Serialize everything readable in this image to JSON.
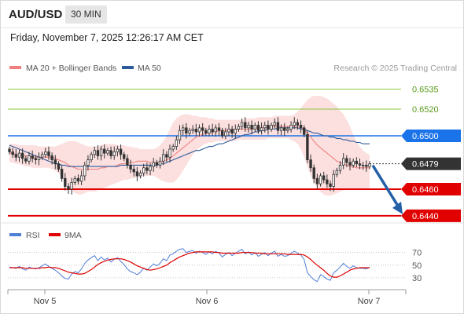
{
  "header": {
    "symbol": "AUD/USD",
    "timeframe": "30 MIN",
    "datetime": "Friday, November 7, 2025 12:26:17 AM CET"
  },
  "legend": {
    "ma20_label": "MA 20 + Bollinger Bands",
    "ma50_label": "MA 50",
    "credit": "Research © 2025 Trading Central",
    "rsi_label": "RSI",
    "rsi_ma_label": "9MA"
  },
  "colors": {
    "ma20": "#f08080",
    "bollinger_fill": "#fcd9d9",
    "ma50": "#2d5b9a",
    "candle": "#333333",
    "resistance_green": "#8cc63f",
    "pivot_blue": "#1a73e8",
    "support_red": "#e00000",
    "current_price": "#333333",
    "forecast_arrow": "#2460a7",
    "rsi": "#4f7fd6",
    "rsi_ma": "#e00000"
  },
  "chart_data": [
    {
      "type": "candlestick",
      "title": "AUD/USD",
      "x_ticks": [
        "Nov 5",
        "Nov 6",
        "Nov 7"
      ],
      "y_range": [
        0.6437,
        0.6543
      ],
      "levels": [
        {
          "label": "0.6535",
          "value": 0.6535,
          "kind": "resistance"
        },
        {
          "label": "0.6520",
          "value": 0.652,
          "kind": "resistance"
        },
        {
          "label": "0.6500",
          "value": 0.65,
          "kind": "pivot"
        },
        {
          "label": "0.6479",
          "value": 0.6479,
          "kind": "current"
        },
        {
          "label": "0.6460",
          "value": 0.646,
          "kind": "support"
        },
        {
          "label": "0.6440",
          "value": 0.644,
          "kind": "support"
        }
      ],
      "forecast": {
        "from": 0.6479,
        "to": 0.644,
        "direction": "down"
      },
      "closes": [
        0.6488,
        0.6486,
        0.6484,
        0.6487,
        0.6483,
        0.6481,
        0.6485,
        0.6483,
        0.6482,
        0.6484,
        0.6486,
        0.6488,
        0.6485,
        0.6482,
        0.6479,
        0.6475,
        0.6468,
        0.6462,
        0.646,
        0.6465,
        0.6468,
        0.6466,
        0.647,
        0.6478,
        0.6482,
        0.6486,
        0.6489,
        0.6485,
        0.649,
        0.6487,
        0.6489,
        0.6485,
        0.6488,
        0.649,
        0.6486,
        0.6483,
        0.6478,
        0.6475,
        0.6473,
        0.647,
        0.6472,
        0.6476,
        0.6474,
        0.6477,
        0.648,
        0.6478,
        0.6481,
        0.6486,
        0.6484,
        0.649,
        0.6492,
        0.6497,
        0.6504,
        0.6506,
        0.6502,
        0.6504,
        0.6505,
        0.6503,
        0.6506,
        0.6504,
        0.6502,
        0.6505,
        0.6503,
        0.6506,
        0.6504,
        0.65,
        0.6503,
        0.6505,
        0.6502,
        0.6505,
        0.6507,
        0.651,
        0.6506,
        0.6508,
        0.6505,
        0.6508,
        0.6504,
        0.6506,
        0.6508,
        0.6505,
        0.6508,
        0.651,
        0.6504,
        0.6506,
        0.6504,
        0.6505,
        0.6508,
        0.651,
        0.6508,
        0.6506,
        0.6501,
        0.6482,
        0.6476,
        0.6468,
        0.6464,
        0.647,
        0.6467,
        0.6464,
        0.6462,
        0.6471,
        0.6474,
        0.6478,
        0.6483,
        0.648,
        0.6478,
        0.6481,
        0.6479,
        0.6478,
        0.6478,
        0.6477,
        0.6479
      ],
      "ma20": [
        0.6487,
        0.6487,
        0.6486,
        0.6486,
        0.6485,
        0.6485,
        0.6485,
        0.6484,
        0.6484,
        0.6484,
        0.6484,
        0.6484,
        0.6484,
        0.6484,
        0.6483,
        0.6482,
        0.6481,
        0.648,
        0.6478,
        0.6477,
        0.6476,
        0.6475,
        0.6475,
        0.6475,
        0.6475,
        0.6475,
        0.6475,
        0.6475,
        0.6476,
        0.6476,
        0.6477,
        0.6477,
        0.6477,
        0.6478,
        0.6479,
        0.6479,
        0.648,
        0.648,
        0.648,
        0.6481,
        0.6481,
        0.6481,
        0.6481,
        0.648,
        0.648,
        0.648,
        0.648,
        0.6481,
        0.6482,
        0.6483,
        0.6485,
        0.6487,
        0.6489,
        0.6491,
        0.6493,
        0.6495,
        0.6497,
        0.6499,
        0.65,
        0.6501,
        0.6502,
        0.6502,
        0.6503,
        0.6503,
        0.6504,
        0.6504,
        0.6504,
        0.6504,
        0.6504,
        0.6505,
        0.6505,
        0.6505,
        0.6505,
        0.6505,
        0.6505,
        0.6506,
        0.6506,
        0.6506,
        0.6506,
        0.6506,
        0.6507,
        0.6507,
        0.6507,
        0.6507,
        0.6507,
        0.6507,
        0.6507,
        0.6507,
        0.6507,
        0.6506,
        0.6505,
        0.6502,
        0.6499,
        0.6496,
        0.6493,
        0.6491,
        0.6489,
        0.6487,
        0.6485,
        0.6483,
        0.6481,
        0.648,
        0.6479,
        0.6478,
        0.6477,
        0.6477,
        0.6476,
        0.6476,
        0.6476,
        0.6476,
        0.6476
      ],
      "bb_upper": [
        0.6494,
        0.6494,
        0.6494,
        0.6493,
        0.6493,
        0.6493,
        0.6493,
        0.6493,
        0.6493,
        0.6492,
        0.6492,
        0.6492,
        0.6492,
        0.6492,
        0.6492,
        0.6493,
        0.6494,
        0.6495,
        0.6496,
        0.6496,
        0.6496,
        0.6495,
        0.6494,
        0.6493,
        0.6492,
        0.6492,
        0.6492,
        0.6492,
        0.6493,
        0.6494,
        0.6494,
        0.6494,
        0.6494,
        0.6493,
        0.6493,
        0.6493,
        0.6492,
        0.6492,
        0.6491,
        0.6491,
        0.649,
        0.649,
        0.649,
        0.649,
        0.649,
        0.6491,
        0.6493,
        0.6496,
        0.65,
        0.6505,
        0.651,
        0.6513,
        0.6515,
        0.6516,
        0.6516,
        0.6516,
        0.6515,
        0.6515,
        0.6514,
        0.6514,
        0.6514,
        0.6513,
        0.6513,
        0.6512,
        0.6512,
        0.6512,
        0.6512,
        0.6512,
        0.6512,
        0.6512,
        0.6512,
        0.6512,
        0.6513,
        0.6513,
        0.6513,
        0.6513,
        0.6514,
        0.6514,
        0.6514,
        0.6514,
        0.6514,
        0.6515,
        0.6515,
        0.6515,
        0.6515,
        0.6515,
        0.6515,
        0.6516,
        0.6518,
        0.6521,
        0.6524,
        0.6527,
        0.6529,
        0.653,
        0.653,
        0.653,
        0.6529,
        0.6528,
        0.6526,
        0.6524,
        0.6522,
        0.6519,
        0.6516,
        0.6512,
        0.6507,
        0.6501,
        0.6496,
        0.6492,
        0.6489,
        0.6487,
        0.6486
      ],
      "bb_lower": [
        0.648,
        0.648,
        0.6479,
        0.6479,
        0.6478,
        0.6477,
        0.6477,
        0.6476,
        0.6476,
        0.6476,
        0.6476,
        0.6476,
        0.6476,
        0.6475,
        0.6474,
        0.6472,
        0.6469,
        0.6466,
        0.6462,
        0.6459,
        0.6457,
        0.6456,
        0.6456,
        0.6457,
        0.6458,
        0.6458,
        0.6458,
        0.6459,
        0.646,
        0.6461,
        0.6462,
        0.6463,
        0.6464,
        0.6465,
        0.6466,
        0.6467,
        0.6467,
        0.6468,
        0.6468,
        0.6469,
        0.6469,
        0.647,
        0.647,
        0.647,
        0.647,
        0.6469,
        0.6467,
        0.6466,
        0.6465,
        0.6465,
        0.6465,
        0.6467,
        0.647,
        0.6474,
        0.6478,
        0.6482,
        0.6486,
        0.6489,
        0.6491,
        0.6493,
        0.6494,
        0.6495,
        0.6495,
        0.6496,
        0.6496,
        0.6496,
        0.6496,
        0.6496,
        0.6496,
        0.6496,
        0.6497,
        0.6497,
        0.6497,
        0.6497,
        0.6497,
        0.6497,
        0.6497,
        0.6497,
        0.6497,
        0.6498,
        0.6498,
        0.6498,
        0.6498,
        0.6498,
        0.6498,
        0.6498,
        0.6497,
        0.6496,
        0.6494,
        0.649,
        0.6484,
        0.6477,
        0.647,
        0.6465,
        0.6461,
        0.6458,
        0.6456,
        0.6455,
        0.6455,
        0.6456,
        0.6457,
        0.6458,
        0.6459,
        0.646,
        0.646,
        0.646,
        0.646,
        0.646,
        0.646,
        0.646,
        0.646
      ],
      "ma50": [
        0.6493,
        0.6492,
        0.6491,
        0.649,
        0.6489,
        0.6488,
        0.6487,
        0.6486,
        0.6485,
        0.6484,
        0.6483,
        0.6482,
        0.6481,
        0.648,
        0.6479,
        0.6479,
        0.6478,
        0.6478,
        0.6477,
        0.6477,
        0.6477,
        0.6477,
        0.6477,
        0.6477,
        0.6477,
        0.6477,
        0.6477,
        0.6477,
        0.6477,
        0.6477,
        0.6477,
        0.6477,
        0.6477,
        0.6477,
        0.6478,
        0.6478,
        0.6478,
        0.6478,
        0.6478,
        0.6478,
        0.6478,
        0.6478,
        0.6478,
        0.6478,
        0.6478,
        0.6478,
        0.6479,
        0.6479,
        0.648,
        0.6481,
        0.6482,
        0.6483,
        0.6484,
        0.6485,
        0.6486,
        0.6487,
        0.6488,
        0.6489,
        0.6489,
        0.649,
        0.6491,
        0.6492,
        0.6492,
        0.6493,
        0.6494,
        0.6494,
        0.6495,
        0.6496,
        0.6497,
        0.6498,
        0.6499,
        0.65,
        0.6501,
        0.6501,
        0.6502,
        0.6503,
        0.6503,
        0.6504,
        0.6504,
        0.6505,
        0.6505,
        0.6505,
        0.6506,
        0.6506,
        0.6506,
        0.6506,
        0.6506,
        0.6506,
        0.6506,
        0.6505,
        0.6505,
        0.6504,
        0.6503,
        0.6502,
        0.6502,
        0.6501,
        0.65,
        0.65,
        0.6499,
        0.6499,
        0.6498,
        0.6498,
        0.6497,
        0.6497,
        0.6496,
        0.6496,
        0.6495,
        0.6495,
        0.6494,
        0.6494,
        0.6494
      ]
    },
    {
      "type": "line",
      "title": "RSI",
      "y_ticks": [
        70,
        50,
        30
      ],
      "y_range": [
        15,
        82
      ],
      "series": [
        {
          "name": "RSI",
          "values": [
            47,
            46,
            45,
            48,
            44,
            42,
            47,
            45,
            44,
            46,
            49,
            52,
            48,
            45,
            42,
            38,
            33,
            29,
            28,
            36,
            40,
            38,
            44,
            53,
            58,
            62,
            65,
            57,
            63,
            58,
            61,
            55,
            59,
            62,
            56,
            51,
            44,
            40,
            38,
            35,
            39,
            45,
            42,
            47,
            52,
            49,
            53,
            60,
            57,
            66,
            68,
            72,
            75,
            76,
            70,
            72,
            73,
            69,
            72,
            70,
            67,
            71,
            68,
            72,
            69,
            63,
            67,
            70,
            65,
            69,
            72,
            75,
            68,
            71,
            66,
            70,
            64,
            67,
            70,
            65,
            69,
            72,
            64,
            67,
            64,
            65,
            69,
            72,
            69,
            66,
            59,
            38,
            32,
            27,
            24,
            35,
            32,
            28,
            26,
            38,
            42,
            47,
            53,
            48,
            45,
            49,
            46,
            45,
            45,
            44,
            47
          ]
        },
        {
          "name": "9MA",
          "values": [
            46,
            46,
            46,
            46,
            46,
            45,
            45,
            45,
            45,
            45,
            46,
            46,
            47,
            46,
            46,
            45,
            43,
            41,
            39,
            38,
            37,
            36,
            36,
            37,
            40,
            43,
            47,
            51,
            54,
            56,
            58,
            59,
            60,
            60,
            60,
            59,
            57,
            55,
            52,
            49,
            47,
            45,
            43,
            42,
            43,
            44,
            46,
            48,
            50,
            54,
            57,
            60,
            63,
            65,
            67,
            69,
            70,
            71,
            71,
            71,
            71,
            71,
            71,
            70,
            70,
            69,
            69,
            69,
            69,
            69,
            69,
            70,
            70,
            70,
            70,
            69,
            69,
            69,
            68,
            68,
            68,
            68,
            68,
            68,
            68,
            67,
            67,
            67,
            67,
            67,
            66,
            63,
            59,
            54,
            50,
            46,
            42,
            37,
            33,
            31,
            31,
            33,
            36,
            39,
            42,
            44,
            45,
            46,
            46,
            46,
            46
          ]
        }
      ]
    }
  ]
}
